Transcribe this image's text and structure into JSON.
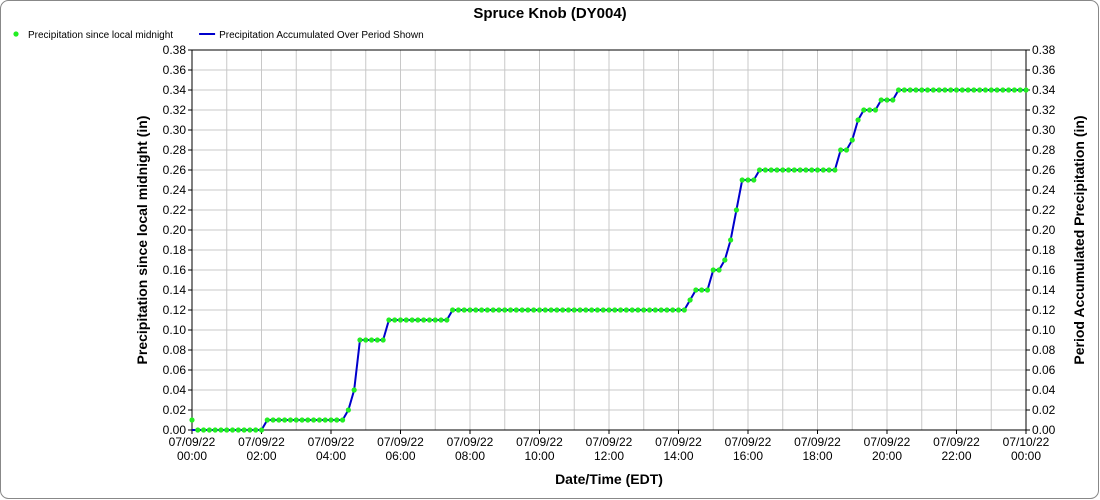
{
  "chart_data": {
    "type": "line",
    "title": "Spruce Knob (DY004)",
    "x_label": "Date/Time (EDT)",
    "y_label": "Precipitation since local midnight (in)",
    "y2_label": "Period Accumulated Precipitation (in)",
    "legend": "top-left",
    "grid": true,
    "xlim": [
      0,
      1440
    ],
    "xticks": [
      {
        "value": 0,
        "label": "07/09/22 00:00"
      },
      {
        "value": 120,
        "label": "07/09/22 02:00"
      },
      {
        "value": 240,
        "label": "07/09/22 04:00"
      },
      {
        "value": 360,
        "label": "07/09/22 06:00"
      },
      {
        "value": 480,
        "label": "07/09/22 08:00"
      },
      {
        "value": 600,
        "label": "07/09/22 10:00"
      },
      {
        "value": 720,
        "label": "07/09/22 12:00"
      },
      {
        "value": 840,
        "label": "07/09/22 14:00"
      },
      {
        "value": 960,
        "label": "07/09/22 16:00"
      },
      {
        "value": 1080,
        "label": "07/09/22 18:00"
      },
      {
        "value": 1200,
        "label": "07/09/22 20:00"
      },
      {
        "value": 1320,
        "label": "07/09/22 22:00"
      },
      {
        "value": 1440,
        "label": "07/10/22 00:00"
      }
    ],
    "x_minor_ticks": [
      60,
      180,
      300,
      420,
      540,
      660,
      780,
      900,
      1020,
      1140,
      1260,
      1380
    ],
    "ylim": [
      0,
      0.38
    ],
    "yticks": [
      {
        "value": 0,
        "label": "0.00"
      },
      {
        "value": 0.02,
        "label": "0.02"
      },
      {
        "value": 0.04,
        "label": "0.04"
      },
      {
        "value": 0.06,
        "label": "0.06"
      },
      {
        "value": 0.08,
        "label": "0.08"
      },
      {
        "value": 0.1,
        "label": "0.10"
      },
      {
        "value": 0.12,
        "label": "0.12"
      },
      {
        "value": 0.14,
        "label": "0.14"
      },
      {
        "value": 0.16,
        "label": "0.16"
      },
      {
        "value": 0.18,
        "label": "0.18"
      },
      {
        "value": 0.2,
        "label": "0.20"
      },
      {
        "value": 0.22,
        "label": "0.22"
      },
      {
        "value": 0.24,
        "label": "0.24"
      },
      {
        "value": 0.26,
        "label": "0.26"
      },
      {
        "value": 0.28,
        "label": "0.28"
      },
      {
        "value": 0.3,
        "label": "0.30"
      },
      {
        "value": 0.32,
        "label": "0.32"
      },
      {
        "value": 0.34,
        "label": "0.34"
      },
      {
        "value": 0.36,
        "label": "0.36"
      },
      {
        "value": 0.38,
        "label": "0.38"
      }
    ],
    "y2lim": [
      0,
      0.38
    ],
    "y2ticks": [
      {
        "value": 0,
        "label": "0.00"
      },
      {
        "value": 0.02,
        "label": "0.02"
      },
      {
        "value": 0.04,
        "label": "0.04"
      },
      {
        "value": 0.06,
        "label": "0.06"
      },
      {
        "value": 0.08,
        "label": "0.08"
      },
      {
        "value": 0.1,
        "label": "0.10"
      },
      {
        "value": 0.12,
        "label": "0.12"
      },
      {
        "value": 0.14,
        "label": "0.14"
      },
      {
        "value": 0.16,
        "label": "0.16"
      },
      {
        "value": 0.18,
        "label": "0.18"
      },
      {
        "value": 0.2,
        "label": "0.20"
      },
      {
        "value": 0.22,
        "label": "0.22"
      },
      {
        "value": 0.24,
        "label": "0.24"
      },
      {
        "value": 0.26,
        "label": "0.26"
      },
      {
        "value": 0.28,
        "label": "0.28"
      },
      {
        "value": 0.3,
        "label": "0.30"
      },
      {
        "value": 0.32,
        "label": "0.32"
      },
      {
        "value": 0.34,
        "label": "0.34"
      },
      {
        "value": 0.36,
        "label": "0.36"
      },
      {
        "value": 0.38,
        "label": "0.38"
      }
    ],
    "x": [
      0,
      10,
      20,
      30,
      40,
      50,
      60,
      70,
      80,
      90,
      100,
      110,
      120,
      130,
      140,
      150,
      160,
      170,
      180,
      190,
      200,
      210,
      220,
      230,
      240,
      250,
      260,
      270,
      280,
      290,
      300,
      310,
      320,
      330,
      340,
      350,
      360,
      370,
      380,
      390,
      400,
      410,
      420,
      430,
      440,
      450,
      460,
      470,
      480,
      490,
      500,
      510,
      520,
      530,
      540,
      550,
      560,
      570,
      580,
      590,
      600,
      610,
      620,
      630,
      640,
      650,
      660,
      670,
      680,
      690,
      700,
      710,
      720,
      730,
      740,
      750,
      760,
      770,
      780,
      790,
      800,
      810,
      820,
      830,
      840,
      850,
      860,
      870,
      880,
      890,
      900,
      910,
      920,
      930,
      940,
      950,
      960,
      970,
      980,
      990,
      1000,
      1010,
      1020,
      1030,
      1040,
      1050,
      1060,
      1070,
      1080,
      1090,
      1100,
      1110,
      1120,
      1130,
      1140,
      1150,
      1160,
      1170,
      1180,
      1190,
      1200,
      1210,
      1220,
      1230,
      1240,
      1250,
      1260,
      1270,
      1280,
      1290,
      1300,
      1310,
      1320,
      1330,
      1340,
      1350,
      1360,
      1370,
      1380,
      1390,
      1400,
      1410,
      1420,
      1430,
      1440
    ],
    "series": [
      {
        "name": "Precipitation since local midnight",
        "color": "#22ee22",
        "marker": "dot",
        "values": [
          0.01,
          0,
          0,
          0,
          0,
          0,
          0,
          0,
          0,
          0,
          0,
          0,
          0,
          0.01,
          0.01,
          0.01,
          0.01,
          0.01,
          0.01,
          0.01,
          0.01,
          0.01,
          0.01,
          0.01,
          0.01,
          0.01,
          0.01,
          0.02,
          0.04,
          0.09,
          0.09,
          0.09,
          0.09,
          0.09,
          0.11,
          0.11,
          0.11,
          0.11,
          0.11,
          0.11,
          0.11,
          0.11,
          0.11,
          0.11,
          0.11,
          0.12,
          0.12,
          0.12,
          0.12,
          0.12,
          0.12,
          0.12,
          0.12,
          0.12,
          0.12,
          0.12,
          0.12,
          0.12,
          0.12,
          0.12,
          0.12,
          0.12,
          0.12,
          0.12,
          0.12,
          0.12,
          0.12,
          0.12,
          0.12,
          0.12,
          0.12,
          0.12,
          0.12,
          0.12,
          0.12,
          0.12,
          0.12,
          0.12,
          0.12,
          0.12,
          0.12,
          0.12,
          0.12,
          0.12,
          0.12,
          0.12,
          0.13,
          0.14,
          0.14,
          0.14,
          0.16,
          0.16,
          0.17,
          0.19,
          0.22,
          0.25,
          0.25,
          0.25,
          0.26,
          0.26,
          0.26,
          0.26,
          0.26,
          0.26,
          0.26,
          0.26,
          0.26,
          0.26,
          0.26,
          0.26,
          0.26,
          0.26,
          0.28,
          0.28,
          0.29,
          0.31,
          0.32,
          0.32,
          0.32,
          0.33,
          0.33,
          0.33,
          0.34,
          0.34,
          0.34,
          0.34,
          0.34,
          0.34,
          0.34,
          0.34,
          0.34,
          0.34,
          0.34,
          0.34,
          0.34,
          0.34,
          0.34,
          0.34,
          0.34,
          0.34,
          0.34,
          0.34,
          0.34,
          0.34,
          0.34
        ]
      },
      {
        "name": "Precipitation Accumulated Over Period Shown",
        "color": "#0000cc",
        "marker": "line",
        "axis": "y2",
        "values": [
          0,
          0,
          0,
          0,
          0,
          0,
          0,
          0,
          0,
          0,
          0,
          0,
          0,
          0.01,
          0.01,
          0.01,
          0.01,
          0.01,
          0.01,
          0.01,
          0.01,
          0.01,
          0.01,
          0.01,
          0.01,
          0.01,
          0.01,
          0.02,
          0.04,
          0.09,
          0.09,
          0.09,
          0.09,
          0.09,
          0.11,
          0.11,
          0.11,
          0.11,
          0.11,
          0.11,
          0.11,
          0.11,
          0.11,
          0.11,
          0.11,
          0.12,
          0.12,
          0.12,
          0.12,
          0.12,
          0.12,
          0.12,
          0.12,
          0.12,
          0.12,
          0.12,
          0.12,
          0.12,
          0.12,
          0.12,
          0.12,
          0.12,
          0.12,
          0.12,
          0.12,
          0.12,
          0.12,
          0.12,
          0.12,
          0.12,
          0.12,
          0.12,
          0.12,
          0.12,
          0.12,
          0.12,
          0.12,
          0.12,
          0.12,
          0.12,
          0.12,
          0.12,
          0.12,
          0.12,
          0.12,
          0.12,
          0.13,
          0.14,
          0.14,
          0.14,
          0.16,
          0.16,
          0.17,
          0.19,
          0.22,
          0.25,
          0.25,
          0.25,
          0.26,
          0.26,
          0.26,
          0.26,
          0.26,
          0.26,
          0.26,
          0.26,
          0.26,
          0.26,
          0.26,
          0.26,
          0.26,
          0.26,
          0.28,
          0.28,
          0.29,
          0.31,
          0.32,
          0.32,
          0.32,
          0.33,
          0.33,
          0.33,
          0.34,
          0.34,
          0.34,
          0.34,
          0.34,
          0.34,
          0.34,
          0.34,
          0.34,
          0.34,
          0.34,
          0.34,
          0.34,
          0.34,
          0.34,
          0.34,
          0.34,
          0.34,
          0.34,
          0.34,
          0.34,
          0.34,
          0.34
        ]
      }
    ]
  }
}
